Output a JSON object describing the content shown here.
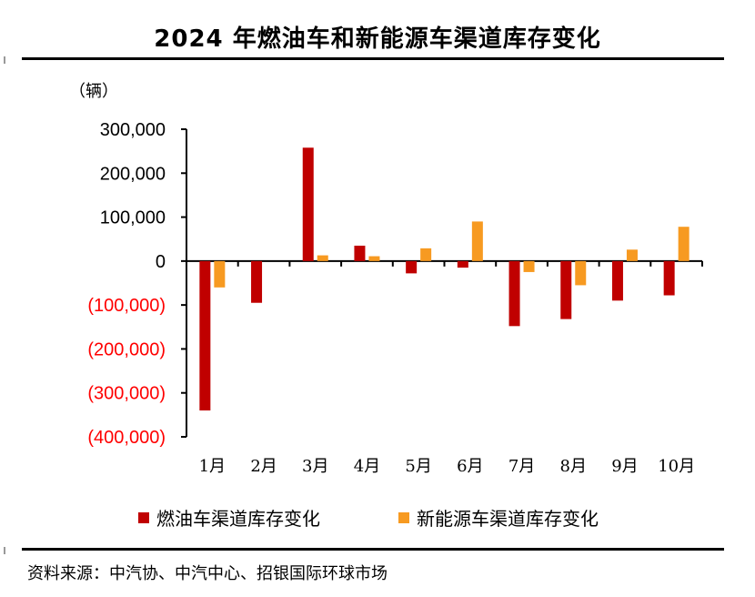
{
  "header": {
    "title": "2024 年燃油车和新能源车渠道库存变化"
  },
  "unit_label": "（辆）",
  "source": "资料来源：中汽协、中汽中心、招银国际环球市场",
  "colors": {
    "fuel": "#c00000",
    "nev": "#f79a21",
    "negative_tick": "#ff0000",
    "axis": "#000000"
  },
  "chart_data": {
    "type": "bar",
    "title": "2024 年燃油车和新能源车渠道库存变化",
    "categories": [
      "1月",
      "2月",
      "3月",
      "4月",
      "5月",
      "6月",
      "7月",
      "8月",
      "9月",
      "10月"
    ],
    "series": [
      {
        "name": "燃油车渠道库存变化",
        "values": [
          -340000,
          -95000,
          258000,
          35000,
          -28000,
          -15000,
          -148000,
          -132000,
          -90000,
          -78000
        ]
      },
      {
        "name": "新能源车渠道库存变化",
        "values": [
          -60000,
          0,
          13000,
          11000,
          29000,
          90000,
          -25000,
          -55000,
          26000,
          78000
        ]
      }
    ],
    "ylim": [
      -400000,
      300000
    ],
    "yticks": [
      300000,
      200000,
      100000,
      0,
      -100000,
      -200000,
      -300000,
      -400000
    ],
    "ytick_labels": [
      "300,000",
      "200,000",
      "100,000",
      "0",
      "(100,000)",
      "(200,000)",
      "(300,000)",
      "(400,000)"
    ],
    "grid": false,
    "legend": "bottom"
  }
}
